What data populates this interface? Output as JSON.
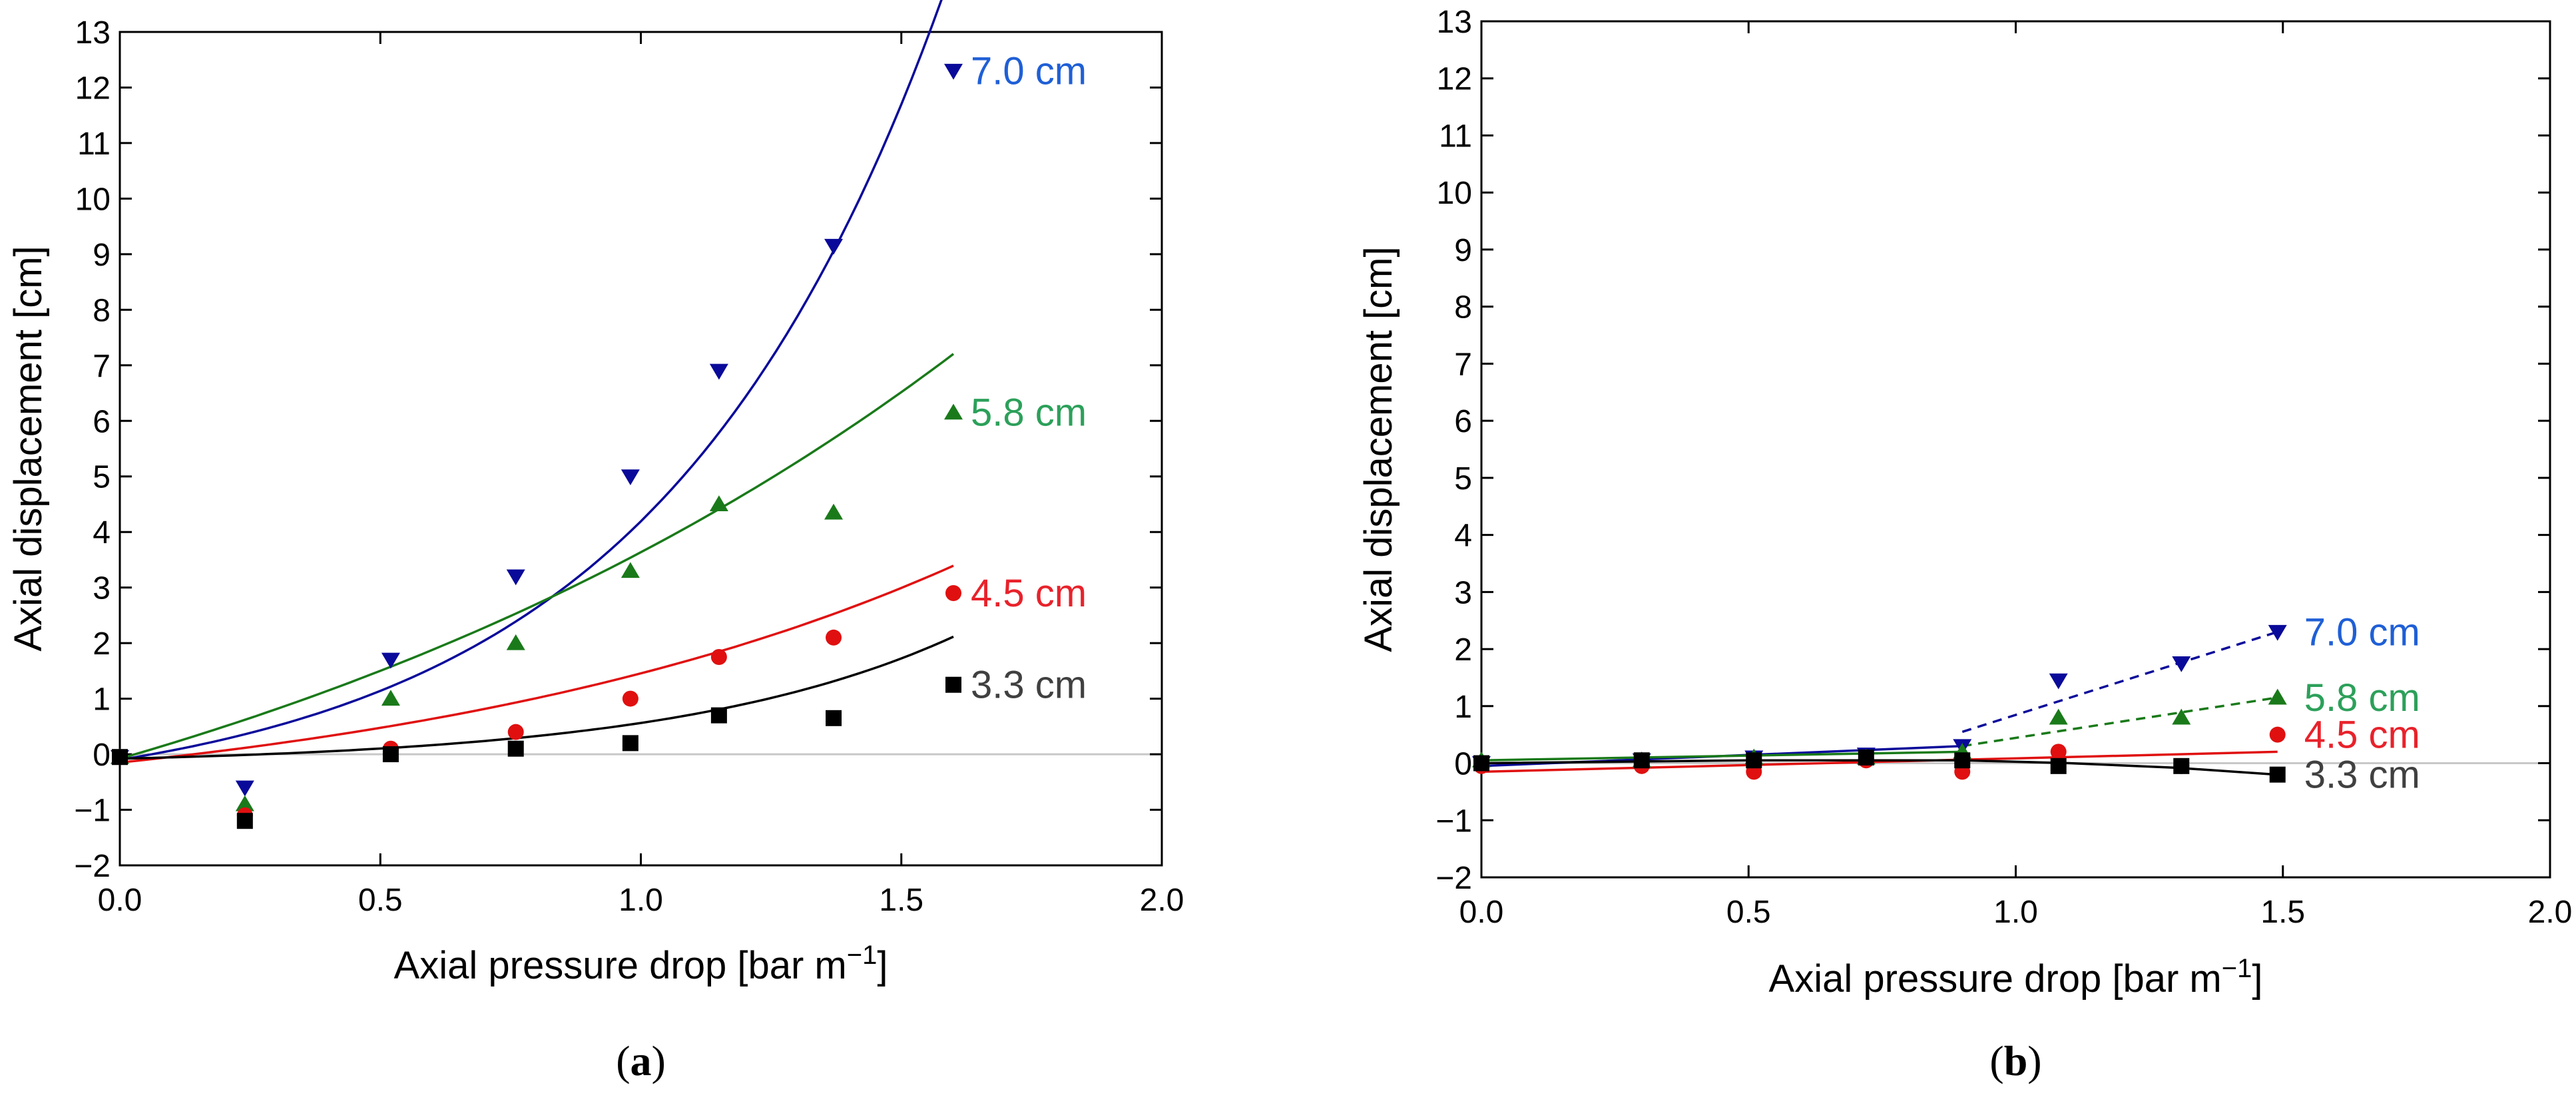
{
  "chart_data": [
    {
      "type": "scatter",
      "panel": "(a)",
      "panel_letter": "a",
      "xlabel": "Axial pressure drop [bar m",
      "xlabel_sup": "−1",
      "xlabel_end": "]",
      "ylabel": "Axial displacement [cm]",
      "xlim": [
        0.0,
        2.0
      ],
      "ylim": [
        -2,
        13
      ],
      "xticks": [
        "0.0",
        "0.5",
        "1.0",
        "1.5",
        "2.0"
      ],
      "yticks": [
        "−2",
        "−1",
        "0",
        "1",
        "2",
        "3",
        "4",
        "5",
        "6",
        "7",
        "8",
        "9",
        "10",
        "11",
        "12",
        "13"
      ],
      "zero_line": true,
      "series": [
        {
          "name": "7.0 cm",
          "color": "#0a0a9a",
          "label_color": "#1f5fd6",
          "marker": "triangle-down",
          "x": [
            0.0,
            0.24,
            0.52,
            0.76,
            0.98,
            1.15,
            1.37,
            1.6
          ],
          "y": [
            -0.05,
            -0.6,
            1.7,
            3.2,
            5.0,
            6.9,
            9.15,
            12.3
          ],
          "fit": {
            "kind": "exp",
            "a": 0.85,
            "b": 1.8,
            "c": -0.95,
            "x0": 0.0,
            "x1": 1.6,
            "dashed_from": null
          }
        },
        {
          "name": "5.8 cm",
          "color": "#1a7a1a",
          "label_color": "#2ca05a",
          "marker": "triangle-up",
          "x": [
            0.0,
            0.24,
            0.52,
            0.76,
            0.98,
            1.15,
            1.37,
            1.6
          ],
          "y": [
            -0.05,
            -0.9,
            1.0,
            2.0,
            3.3,
            4.5,
            4.35,
            6.15
          ],
          "fit": {
            "kind": "exp",
            "a": 4.52,
            "b": 0.6,
            "c": -4.6,
            "x0": 0.0,
            "x1": 1.6,
            "dashed_from": null
          }
        },
        {
          "name": "4.5 cm",
          "color": "#e01010",
          "label_color": "#e8222b",
          "marker": "circle",
          "x": [
            0.0,
            0.24,
            0.52,
            0.76,
            0.98,
            1.15,
            1.37,
            1.6
          ],
          "y": [
            -0.05,
            -1.1,
            0.1,
            0.4,
            1.0,
            1.75,
            2.1,
            2.9
          ],
          "fit": {
            "kind": "exp",
            "a": 1.1,
            "b": 0.9,
            "c": -1.25,
            "x0": 0.0,
            "x1": 1.6,
            "dashed_from": null
          }
        },
        {
          "name": "3.3 cm",
          "color": "#000000",
          "label_color": "#404040",
          "marker": "square",
          "x": [
            0.0,
            0.24,
            0.52,
            0.76,
            0.98,
            1.15,
            1.37,
            1.6
          ],
          "y": [
            -0.05,
            -1.2,
            0.0,
            0.1,
            0.2,
            0.7,
            0.65,
            1.25
          ],
          "fit": {
            "kind": "exp",
            "a": 0.12,
            "b": 1.85,
            "c": -0.2,
            "x0": 0.0,
            "x1": 1.6,
            "dashed_from": null
          }
        }
      ]
    },
    {
      "type": "scatter",
      "panel": "(b)",
      "panel_letter": "b",
      "xlabel": "Axial pressure drop [bar m",
      "xlabel_sup": "−1",
      "xlabel_end": "]",
      "ylabel": "Axial displacement [cm]",
      "xlim": [
        0.0,
        2.0
      ],
      "ylim": [
        -2,
        13
      ],
      "xticks": [
        "0.0",
        "0.5",
        "1.0",
        "1.5",
        "2.0"
      ],
      "yticks": [
        "−2",
        "−1",
        "0",
        "1",
        "2",
        "3",
        "4",
        "5",
        "6",
        "7",
        "8",
        "9",
        "10",
        "11",
        "12",
        "13"
      ],
      "zero_line": true,
      "series": [
        {
          "name": "7.0 cm",
          "color": "#0a0a9a",
          "label_color": "#1f5fd6",
          "marker": "triangle-down",
          "x": [
            0.0,
            0.3,
            0.51,
            0.72,
            0.9,
            1.08,
            1.31,
            1.49
          ],
          "y": [
            0.0,
            0.05,
            0.1,
            0.15,
            0.3,
            1.45,
            1.75,
            2.3
          ],
          "fit": {
            "kind": "line",
            "points": [
              [
                0.0,
                -0.05
              ],
              [
                0.9,
                0.3
              ]
            ],
            "dashed_points": [
              [
                0.9,
                0.55
              ],
              [
                1.49,
                2.3
              ]
            ]
          }
        },
        {
          "name": "5.8 cm",
          "color": "#1a7a1a",
          "label_color": "#2ca05a",
          "marker": "triangle-up",
          "x": [
            0.0,
            0.3,
            0.51,
            0.72,
            0.9,
            1.08,
            1.31,
            1.49
          ],
          "y": [
            0.05,
            0.05,
            0.1,
            0.1,
            0.2,
            0.8,
            0.8,
            1.15
          ],
          "fit": {
            "kind": "line",
            "points": [
              [
                0.0,
                0.05
              ],
              [
                0.9,
                0.2
              ]
            ],
            "dashed_points": [
              [
                0.9,
                0.3
              ],
              [
                1.49,
                1.15
              ]
            ]
          }
        },
        {
          "name": "4.5 cm",
          "color": "#e01010",
          "label_color": "#e8222b",
          "marker": "circle",
          "x": [
            0.0,
            0.3,
            0.51,
            0.72,
            0.9,
            1.08,
            1.31,
            1.49
          ],
          "y": [
            -0.05,
            -0.05,
            -0.15,
            0.05,
            -0.15,
            0.2,
            -0.05,
            0.5
          ],
          "fit": {
            "kind": "line",
            "points": [
              [
                0.0,
                -0.15
              ],
              [
                1.49,
                0.2
              ]
            ],
            "dashed_points": null
          }
        },
        {
          "name": "3.3 cm",
          "color": "#000000",
          "label_color": "#404040",
          "marker": "square",
          "x": [
            0.0,
            0.3,
            0.51,
            0.72,
            0.9,
            1.08,
            1.31,
            1.49
          ],
          "y": [
            0.0,
            0.05,
            0.05,
            0.1,
            0.05,
            -0.05,
            -0.05,
            -0.2
          ],
          "fit": {
            "kind": "poly",
            "points": [
              [
                0.0,
                0.0
              ],
              [
                0.5,
                0.05
              ],
              [
                0.9,
                0.05
              ],
              [
                1.1,
                0.0
              ],
              [
                1.3,
                -0.08
              ],
              [
                1.49,
                -0.2
              ]
            ],
            "dashed_points": null
          }
        }
      ]
    }
  ]
}
